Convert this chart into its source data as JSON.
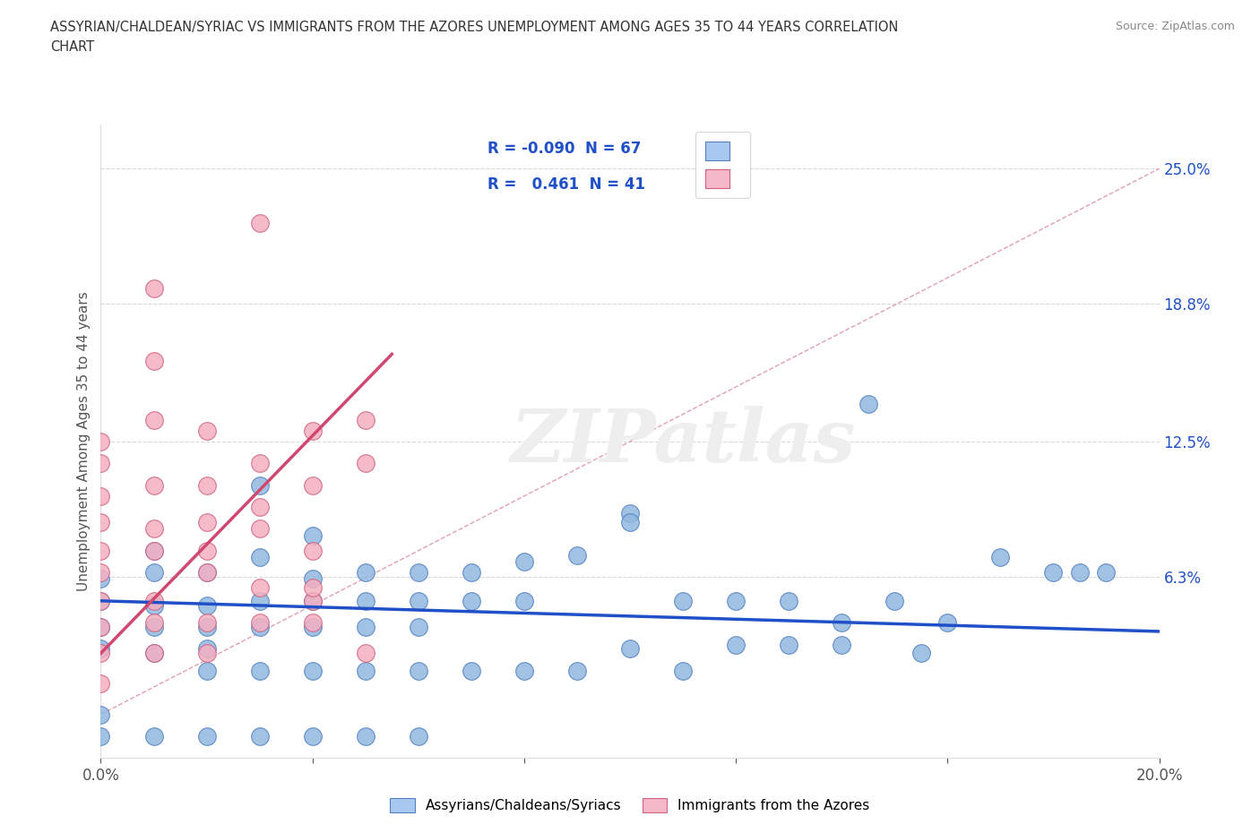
{
  "title_line1": "ASSYRIAN/CHALDEAN/SYRIAC VS IMMIGRANTS FROM THE AZORES UNEMPLOYMENT AMONG AGES 35 TO 44 YEARS CORRELATION",
  "title_line2": "CHART",
  "source": "Source: ZipAtlas.com",
  "ylabel": "Unemployment Among Ages 35 to 44 years",
  "xlim": [
    0.0,
    0.2
  ],
  "ylim": [
    -0.02,
    0.27
  ],
  "ytick_labels": [
    "6.3%",
    "12.5%",
    "18.8%",
    "25.0%"
  ],
  "ytick_values": [
    0.063,
    0.125,
    0.188,
    0.25
  ],
  "xtick_values": [
    0.0,
    0.04,
    0.08,
    0.12,
    0.16,
    0.2
  ],
  "xtick_labels": [
    "0.0%",
    "",
    "",
    "",
    "",
    "20.0%"
  ],
  "watermark_text": "ZIPatlas",
  "blue_scatter_x": [
    0.0,
    0.0,
    0.0,
    0.0,
    0.01,
    0.01,
    0.01,
    0.01,
    0.01,
    0.02,
    0.02,
    0.02,
    0.02,
    0.02,
    0.03,
    0.03,
    0.03,
    0.03,
    0.03,
    0.04,
    0.04,
    0.04,
    0.04,
    0.04,
    0.05,
    0.05,
    0.05,
    0.05,
    0.06,
    0.06,
    0.06,
    0.06,
    0.07,
    0.07,
    0.07,
    0.08,
    0.08,
    0.08,
    0.09,
    0.09,
    0.1,
    0.1,
    0.11,
    0.11,
    0.12,
    0.12,
    0.13,
    0.13,
    0.14,
    0.14,
    0.15,
    0.155,
    0.16,
    0.17,
    0.18,
    0.185,
    0.19,
    0.145,
    0.1,
    0.0,
    0.0,
    0.01,
    0.02,
    0.03,
    0.04,
    0.05,
    0.06
  ],
  "blue_scatter_y": [
    0.052,
    0.04,
    0.03,
    0.062,
    0.05,
    0.065,
    0.04,
    0.028,
    0.075,
    0.05,
    0.04,
    0.065,
    0.03,
    0.02,
    0.052,
    0.072,
    0.105,
    0.04,
    0.02,
    0.052,
    0.062,
    0.082,
    0.04,
    0.02,
    0.052,
    0.04,
    0.065,
    0.02,
    0.052,
    0.065,
    0.04,
    0.02,
    0.052,
    0.065,
    0.02,
    0.052,
    0.02,
    0.07,
    0.073,
    0.02,
    0.092,
    0.03,
    0.052,
    0.02,
    0.052,
    0.032,
    0.052,
    0.032,
    0.042,
    0.032,
    0.052,
    0.028,
    0.042,
    0.072,
    0.065,
    0.065,
    0.065,
    0.142,
    0.088,
    0.0,
    -0.01,
    -0.01,
    -0.01,
    -0.01,
    -0.01,
    -0.01,
    -0.01
  ],
  "pink_scatter_x": [
    0.0,
    0.0,
    0.0,
    0.0,
    0.0,
    0.0,
    0.0,
    0.0,
    0.01,
    0.01,
    0.01,
    0.01,
    0.01,
    0.01,
    0.01,
    0.02,
    0.02,
    0.02,
    0.02,
    0.02,
    0.03,
    0.03,
    0.03,
    0.03,
    0.04,
    0.04,
    0.04,
    0.04,
    0.05,
    0.05,
    0.0,
    0.0,
    0.01,
    0.01,
    0.02,
    0.02,
    0.03,
    0.03,
    0.04,
    0.04,
    0.05
  ],
  "pink_scatter_y": [
    0.052,
    0.04,
    0.065,
    0.075,
    0.088,
    0.1,
    0.115,
    0.125,
    0.052,
    0.075,
    0.085,
    0.105,
    0.135,
    0.162,
    0.195,
    0.065,
    0.075,
    0.088,
    0.105,
    0.13,
    0.085,
    0.095,
    0.115,
    0.225,
    0.052,
    0.105,
    0.13,
    0.075,
    0.135,
    0.115,
    0.028,
    0.014,
    0.028,
    0.042,
    0.028,
    0.042,
    0.042,
    0.058,
    0.042,
    0.058,
    0.028
  ],
  "blue_line_x": [
    0.0,
    0.2
  ],
  "blue_line_y": [
    0.052,
    0.038
  ],
  "pink_line_x": [
    0.0,
    0.055
  ],
  "pink_line_y": [
    0.028,
    0.165
  ],
  "ref_line_x": [
    0.0,
    0.2
  ],
  "ref_line_y": [
    0.0,
    0.25
  ],
  "blue_dot_color": "#92b8e0",
  "blue_edge_color": "#5080c0",
  "pink_dot_color": "#f4b0c0",
  "pink_edge_color": "#d06080",
  "blue_line_color": "#2050c8",
  "pink_line_color": "#d04870",
  "ref_line_color": "#e0a0b0",
  "legend_blue_color": "#a8c8f0",
  "legend_pink_color": "#f4b8c8",
  "text_color_blue": "#2050c8",
  "title_color": "#333333",
  "source_color": "#888888",
  "ylabel_color": "#555555",
  "background_color": "#ffffff",
  "watermark_color": "#eeeeee",
  "ytick_color": "#2050c8"
}
